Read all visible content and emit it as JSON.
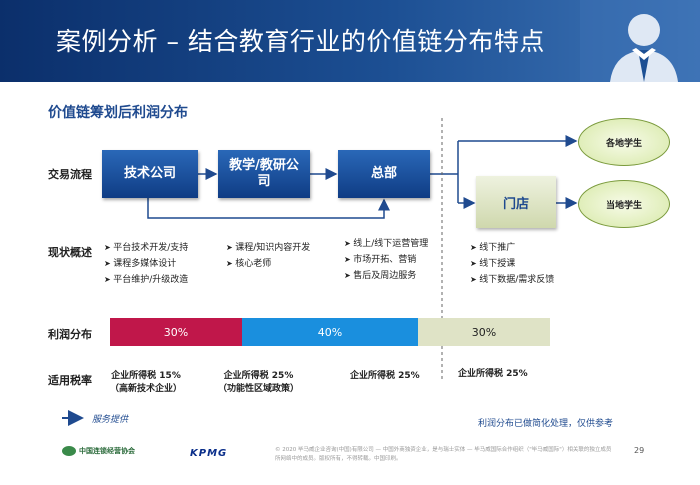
{
  "header": {
    "title": "案例分析 – 结合教育行业的价值链分布特点"
  },
  "section_title": "价值链筹划后利润分布",
  "row_labels": {
    "flow": "交易流程",
    "overview": "现状概述",
    "profit": "利润分布",
    "tax": "适用税率"
  },
  "boxes": {
    "tech": "技术公司",
    "teaching": "教学/教研公司",
    "hq": "总部",
    "store": "门店"
  },
  "students": {
    "regional": "各地学生",
    "local": "当地学生"
  },
  "descriptions": {
    "tech": [
      "平台技术开发/支持",
      "课程多媒体设计",
      "平台维护/升级改造"
    ],
    "teaching": [
      "课程/知识内容开发",
      "核心老师"
    ],
    "hq": [
      "线上/线下运营管理",
      "市场开拓、营销",
      "售后及周边服务"
    ],
    "store": [
      "线下推广",
      "线下授课",
      "线下数据/需求反馈"
    ]
  },
  "profit_bars": [
    {
      "label": "30%",
      "value": 30,
      "color": "#c0174a"
    },
    {
      "label": "40%",
      "value": 40,
      "color": "#1a8fde"
    },
    {
      "label": "30%",
      "value": 30,
      "color": "#dfe3c6"
    }
  ],
  "tax": {
    "tech": {
      "line1": "企业所得税    15%",
      "line2": "（高新技术企业）"
    },
    "teaching": {
      "line1": "企业所得税    25%",
      "line2": "（功能性区域政策）"
    },
    "hq": "企业所得税    25%",
    "store": "企业所得税    25%"
  },
  "legend": "服务提供",
  "note": "利润分布已做简化处理，仅供参考",
  "footer": {
    "logo_cn": "中国连锁经营协会",
    "logo_kpmg": "KPMG",
    "disclaimer": "© 2020 毕马威企业咨询(中国)有限公司 — 中国外商独资企业，是与瑞士实体 — 毕马威国际合作组织（\"毕马威国际\"）相关联的独立成员所网络中的成员。版权所有，不得转载。中国印刷。",
    "page": "29"
  }
}
